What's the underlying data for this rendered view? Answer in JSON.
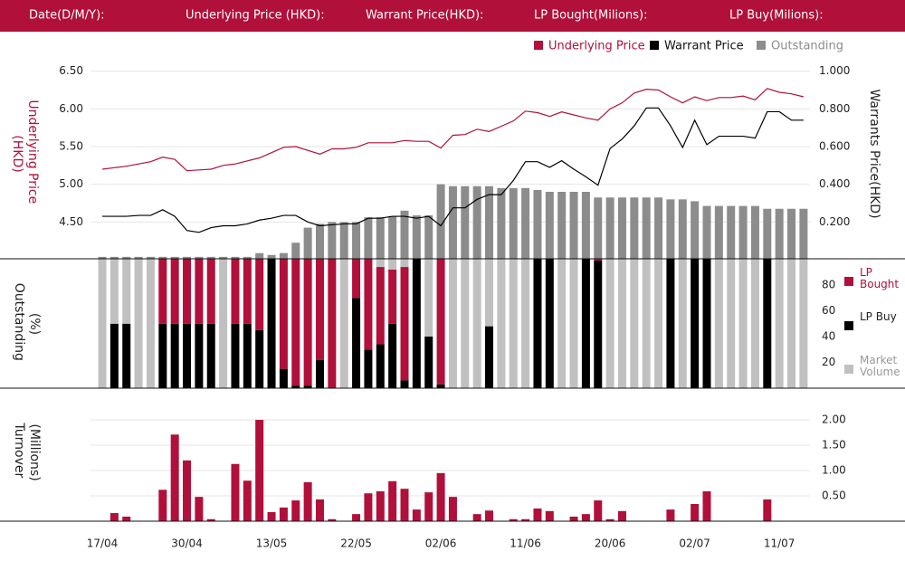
{
  "header": {
    "labels": [
      "Date(D/M/Y):",
      "Underlying Price (HKD):",
      "Warrant  Price(HKD):",
      "LP Bought(Milions):",
      "LP Buy(Milions):"
    ]
  },
  "chart_data": [
    {
      "type": "line",
      "y_label": [
        "Underlying Price",
        "(HKD)"
      ],
      "y2_label": "Warrants  Price(HKD)",
      "ylim": [
        4.0,
        6.7
      ],
      "yticks": [
        {
          "value": 4.5,
          "label": "4.50"
        },
        {
          "value": 5.0,
          "label": "5.00"
        },
        {
          "value": 5.5,
          "label": "5.50"
        },
        {
          "value": 6.0,
          "label": "6.00"
        },
        {
          "value": 6.5,
          "label": "6.50"
        }
      ],
      "y2lim": [
        0,
        1.08
      ],
      "y2ticks": [
        {
          "value": 0.2,
          "label": "0.200"
        },
        {
          "value": 0.4,
          "label": "0.400"
        },
        {
          "value": 0.6,
          "label": "0.600"
        },
        {
          "value": 0.8,
          "label": "0.800"
        },
        {
          "value": 1.0,
          "label": "1.000"
        }
      ],
      "grid": true,
      "series": [
        {
          "name": "Underlying Price",
          "color": "#b0103a",
          "kind": "line",
          "values": [
            5.2,
            5.22,
            5.24,
            5.27,
            5.3,
            5.36,
            5.33,
            5.18,
            5.19,
            5.2,
            5.25,
            5.27,
            5.31,
            5.35,
            5.42,
            5.49,
            5.5,
            5.45,
            5.4,
            5.47,
            5.47,
            5.49,
            5.55,
            5.55,
            5.55,
            5.58,
            5.57,
            5.57,
            5.48,
            5.65,
            5.66,
            5.73,
            5.7,
            5.77,
            5.84,
            5.97,
            5.95,
            5.9,
            5.96,
            5.92,
            5.88,
            5.85,
            6.0,
            6.08,
            6.21,
            6.26,
            6.25,
            6.16,
            6.08,
            6.16,
            6.11,
            6.15,
            6.15,
            6.17,
            6.12,
            6.27,
            6.22,
            6.2,
            6.16
          ]
        },
        {
          "name": "Warrant  Price",
          "color": "#000000",
          "kind": "line",
          "axis": "y2",
          "values": [
            0.23,
            0.23,
            0.23,
            0.235,
            0.235,
            0.265,
            0.23,
            0.155,
            0.145,
            0.17,
            0.18,
            0.18,
            0.19,
            0.21,
            0.22,
            0.235,
            0.235,
            0.2,
            0.18,
            0.185,
            0.19,
            0.19,
            0.22,
            0.22,
            0.23,
            0.23,
            0.22,
            0.23,
            0.18,
            0.275,
            0.275,
            0.32,
            0.345,
            0.345,
            0.42,
            0.52,
            0.52,
            0.49,
            0.525,
            0.48,
            0.44,
            0.395,
            0.59,
            0.64,
            0.71,
            0.805,
            0.805,
            0.71,
            0.595,
            0.74,
            0.61,
            0.655,
            0.655,
            0.655,
            0.645,
            0.785,
            0.785,
            0.74,
            0.74
          ]
        },
        {
          "name": "Outstanding",
          "color": "#8c8c8c",
          "kind": "bar",
          "axis": "y2",
          "values": [
            0.015,
            0.015,
            0.015,
            0.015,
            0.015,
            0.015,
            0.015,
            0.015,
            0.015,
            0.015,
            0.015,
            0.015,
            0.015,
            0.035,
            0.025,
            0.035,
            0.09,
            0.17,
            0.19,
            0.2,
            0.2,
            0.2,
            0.225,
            0.225,
            0.23,
            0.26,
            0.235,
            0.235,
            0.4,
            0.39,
            0.39,
            0.39,
            0.39,
            0.38,
            0.38,
            0.38,
            0.37,
            0.36,
            0.36,
            0.36,
            0.36,
            0.33,
            0.33,
            0.33,
            0.33,
            0.33,
            0.33,
            0.32,
            0.32,
            0.31,
            0.285,
            0.285,
            0.285,
            0.285,
            0.285,
            0.27,
            0.27,
            0.27,
            0.27
          ]
        }
      ]
    },
    {
      "type": "stacked_bar",
      "y_label": [
        "Outstanding",
        "(%)"
      ],
      "ylim": [
        0,
        100
      ],
      "yticks": [
        20,
        40,
        60,
        80
      ],
      "series": [
        {
          "name": "LP Bought",
          "color": "#b0103a",
          "values": [
            0,
            0,
            0,
            0,
            0,
            50,
            50,
            50,
            50,
            50,
            0,
            50,
            50,
            55,
            0,
            85,
            98,
            98,
            78,
            100,
            0,
            30,
            70,
            60,
            42,
            88,
            0,
            0,
            97,
            0,
            0,
            0,
            0,
            0,
            0,
            0,
            0,
            0,
            0,
            0,
            0,
            1,
            0,
            0,
            0,
            0,
            0,
            0,
            0,
            0,
            0,
            0,
            0,
            0,
            0,
            0,
            0,
            0,
            0
          ]
        },
        {
          "name": "LP Buy",
          "color": "#000000",
          "values": [
            0,
            50,
            50,
            0,
            0,
            50,
            50,
            50,
            50,
            50,
            0,
            50,
            50,
            45,
            100,
            15,
            2,
            2,
            22,
            0,
            0,
            70,
            30,
            34,
            50,
            6,
            100,
            40,
            3,
            0,
            0,
            0,
            48,
            0,
            0,
            0,
            100,
            100,
            0,
            0,
            100,
            99,
            0,
            0,
            0,
            0,
            0,
            100,
            0,
            100,
            100,
            0,
            0,
            0,
            0,
            100,
            0,
            0,
            0
          ]
        },
        {
          "name": "Market Volume",
          "color": "#c0c0c0",
          "values": [
            100,
            50,
            50,
            100,
            100,
            0,
            0,
            0,
            0,
            0,
            100,
            0,
            0,
            0,
            0,
            0,
            0,
            0,
            0,
            0,
            100,
            0,
            0,
            6,
            8,
            6,
            0,
            60,
            0,
            100,
            100,
            100,
            52,
            100,
            100,
            100,
            0,
            0,
            100,
            100,
            0,
            0,
            100,
            100,
            100,
            100,
            100,
            0,
            100,
            0,
            0,
            100,
            100,
            100,
            100,
            0,
            100,
            100,
            100
          ]
        }
      ]
    },
    {
      "type": "bar",
      "y_label": [
        "Turnover",
        "(Millions)"
      ],
      "categories": [
        "17/04",
        null,
        null,
        null,
        null,
        null,
        null,
        "30/04",
        null,
        null,
        null,
        null,
        null,
        null,
        "13/05",
        null,
        null,
        null,
        null,
        null,
        null,
        "22/05",
        null,
        null,
        null,
        null,
        null,
        null,
        "02/06",
        null,
        null,
        null,
        null,
        null,
        null,
        "11/06",
        null,
        null,
        null,
        null,
        null,
        null,
        "20/06",
        null,
        null,
        null,
        null,
        null,
        null,
        "02/07",
        null,
        null,
        null,
        null,
        null,
        null,
        "11/07",
        null,
        null
      ],
      "ylim": [
        0,
        2.34
      ],
      "yticks": [
        {
          "value": 0.5,
          "label": "0.50"
        },
        {
          "value": 1.0,
          "label": "1.00"
        },
        {
          "value": 1.5,
          "label": "1.50"
        },
        {
          "value": 2.0,
          "label": "2.00"
        }
      ],
      "grid": true,
      "color": "#b0103a",
      "values": [
        0,
        0.16,
        0.09,
        0,
        0,
        0.62,
        1.71,
        1.2,
        0.48,
        0.04,
        0,
        1.13,
        0.8,
        2.0,
        0.18,
        0.27,
        0.41,
        0.77,
        0.43,
        0.04,
        0,
        0.14,
        0.55,
        0.59,
        0.79,
        0.64,
        0.23,
        0.57,
        0.95,
        0.48,
        0,
        0.14,
        0.21,
        0,
        0.04,
        0.04,
        0.25,
        0.2,
        0,
        0.09,
        0.14,
        0.41,
        0.04,
        0.2,
        0,
        0,
        0,
        0.23,
        0,
        0.34,
        0.59,
        0,
        0,
        0,
        0,
        0.43,
        0,
        0,
        0
      ]
    }
  ]
}
